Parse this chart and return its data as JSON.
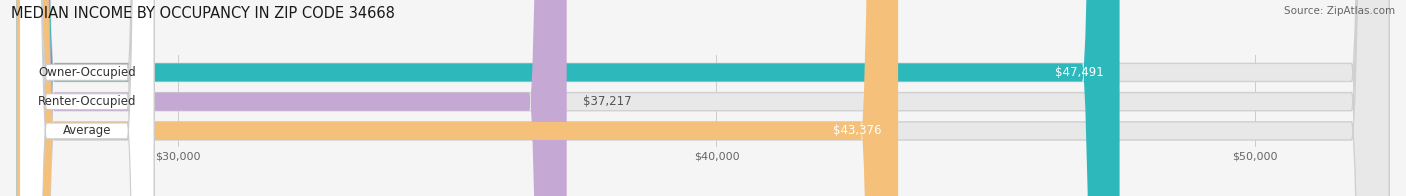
{
  "title": "MEDIAN INCOME BY OCCUPANCY IN ZIP CODE 34668",
  "source": "Source: ZipAtlas.com",
  "categories": [
    "Owner-Occupied",
    "Renter-Occupied",
    "Average"
  ],
  "values": [
    47491,
    37217,
    43376
  ],
  "bar_colors": [
    "#2db8bc",
    "#c5a8d4",
    "#f5c07a"
  ],
  "value_labels": [
    "$47,491",
    "$37,217",
    "$43,376"
  ],
  "xlim_min": 27000,
  "xlim_max": 52500,
  "xticks": [
    30000,
    40000,
    50000
  ],
  "xtick_labels": [
    "$30,000",
    "$40,000",
    "$50,000"
  ],
  "background_color": "#f5f5f5",
  "bar_bg_color": "#e8e8e8",
  "title_fontsize": 10.5,
  "source_fontsize": 7.5,
  "label_fontsize": 8.5,
  "value_fontsize": 8.5,
  "tick_fontsize": 8
}
